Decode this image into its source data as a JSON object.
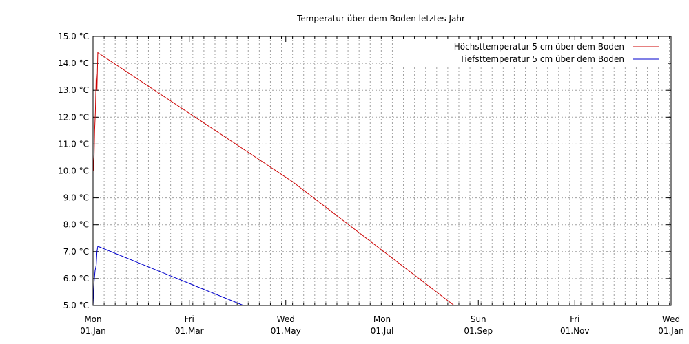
{
  "chart_data": {
    "type": "line",
    "title": "Temperatur über dem Boden letztes Jahr",
    "xlabel": "",
    "ylabel": "",
    "ylim": [
      5.0,
      15.0
    ],
    "xlim": [
      0,
      365
    ],
    "y_ticks": [
      {
        "value": 5.0,
        "label": "5.0 °C"
      },
      {
        "value": 6.0,
        "label": "6.0 °C"
      },
      {
        "value": 7.0,
        "label": "7.0 °C"
      },
      {
        "value": 8.0,
        "label": "8.0 °C"
      },
      {
        "value": 9.0,
        "label": "9.0 °C"
      },
      {
        "value": 10.0,
        "label": "10.0 °C"
      },
      {
        "value": 11.0,
        "label": "11.0 °C"
      },
      {
        "value": 12.0,
        "label": "12.0 °C"
      },
      {
        "value": 13.0,
        "label": "13.0 °C"
      },
      {
        "value": 14.0,
        "label": "14.0 °C"
      },
      {
        "value": 15.0,
        "label": "15.0 °C"
      }
    ],
    "x_ticks": [
      {
        "value": 0,
        "day": "Mon",
        "date": "01.Jan"
      },
      {
        "value": 60.8,
        "day": "Fri",
        "date": "01.Mar"
      },
      {
        "value": 121.7,
        "day": "Wed",
        "date": "01.May"
      },
      {
        "value": 182.5,
        "day": "Mon",
        "date": "01.Jul"
      },
      {
        "value": 243.3,
        "day": "Sun",
        "date": "01.Sep"
      },
      {
        "value": 304.2,
        "day": "Fri",
        "date": "01.Nov"
      },
      {
        "value": 365,
        "day": "Wed",
        "date": "01.Jan"
      }
    ],
    "grid": true,
    "legend_position": "top-right",
    "series": [
      {
        "name": "Höchsttemperatur 5 cm über dem Boden",
        "color": "#cc0000",
        "x": [
          0,
          0.5,
          1.0,
          1.5,
          2.0,
          2.5,
          3.0,
          126,
          228
        ],
        "y": [
          10.6,
          10.0,
          11.5,
          12.2,
          13.6,
          13.0,
          14.4,
          9.6,
          5.0
        ]
      },
      {
        "name": "Tiefsttemperatur 5 cm über dem Boden",
        "color": "#0000cc",
        "x": [
          0,
          0.7,
          1.3,
          2.0,
          2.5,
          3.0,
          95
        ],
        "y": [
          5.0,
          5.9,
          6.3,
          6.5,
          7.0,
          7.2,
          5.0
        ]
      }
    ]
  }
}
